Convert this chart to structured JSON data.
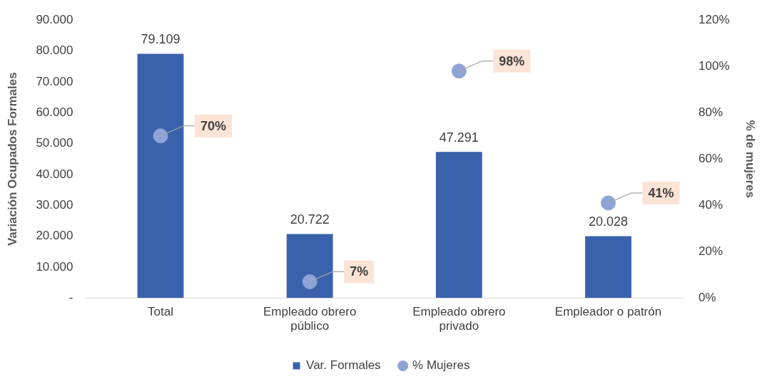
{
  "chart_data": {
    "type": "bar",
    "categories": [
      "Total",
      "Empleado obrero público",
      "Empleado obrero privado",
      "Empleador o patrón"
    ],
    "ylabel": "Variación Ocupados Formales",
    "y2label": "% de mujeres",
    "ylim": [
      0,
      90000
    ],
    "yticks": [
      {
        "value": 0,
        "label": "-"
      },
      {
        "value": 10000,
        "label": "10.000"
      },
      {
        "value": 20000,
        "label": "20.000"
      },
      {
        "value": 30000,
        "label": "30.000"
      },
      {
        "value": 40000,
        "label": "40.000"
      },
      {
        "value": 50000,
        "label": "50.000"
      },
      {
        "value": 60000,
        "label": "60.000"
      },
      {
        "value": 70000,
        "label": "70.000"
      },
      {
        "value": 80000,
        "label": "80.000"
      },
      {
        "value": 90000,
        "label": "90.000"
      }
    ],
    "y2lim": [
      0,
      120
    ],
    "y2ticks": [
      {
        "value": 0,
        "label": "0%"
      },
      {
        "value": 20,
        "label": "20%"
      },
      {
        "value": 40,
        "label": "40%"
      },
      {
        "value": 60,
        "label": "60%"
      },
      {
        "value": 80,
        "label": "80%"
      },
      {
        "value": 100,
        "label": "100%"
      },
      {
        "value": 120,
        "label": "120%"
      }
    ],
    "series": [
      {
        "name": "Var. Formales",
        "color": "#3a62ac",
        "values": [
          79109,
          20722,
          47291,
          20028
        ],
        "value_labels": [
          "79.109",
          "20.722",
          "47.291",
          "20.028"
        ]
      },
      {
        "name": "% Mujeres",
        "type": "scatter",
        "axis": "y2",
        "color": "#8ea3d6",
        "x": [
          "Total",
          "Empleado obrero público",
          "Empleado obrero privado",
          "Empleador o patrón"
        ],
        "values": [
          70,
          7,
          98,
          41
        ],
        "value_labels": [
          "70%",
          "7%",
          "98%",
          "41%"
        ]
      }
    ],
    "legend": "bottom",
    "grid": false,
    "marker": "circle"
  }
}
